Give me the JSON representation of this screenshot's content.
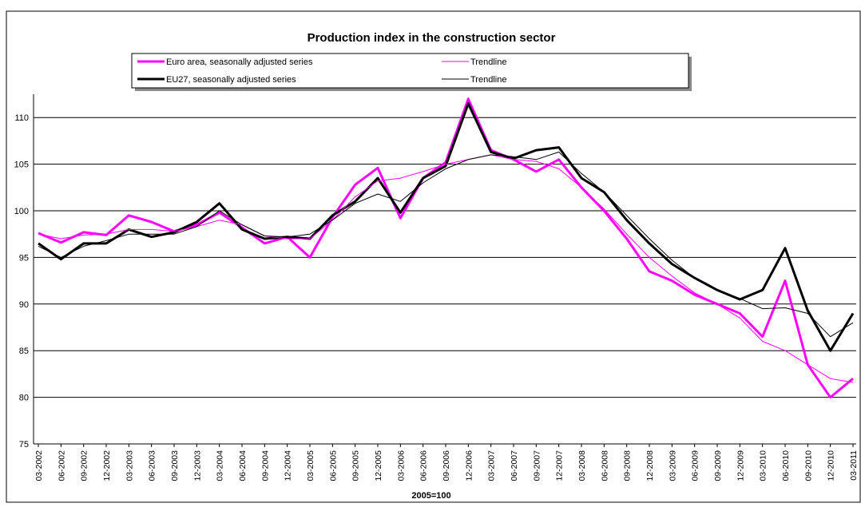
{
  "chart_data": {
    "type": "line",
    "title": "Production index in the construction sector",
    "xlabel": "2005=100",
    "categories": [
      "03-2002",
      "06-2002",
      "09-2002",
      "12-2002",
      "03-2003",
      "06-2003",
      "09-2003",
      "12-2003",
      "03-2004",
      "06-2004",
      "09-2004",
      "12-2004",
      "03-2005",
      "06-2005",
      "09-2005",
      "12-2005",
      "03-2006",
      "06-2006",
      "09-2006",
      "12-2006",
      "03-2007",
      "06-2007",
      "09-2007",
      "12-2007",
      "03-2008",
      "06-2008",
      "09-2008",
      "12-2008",
      "03-2009",
      "06-2009",
      "09-2009",
      "12-2009",
      "03-2010",
      "06-2010",
      "09-2010",
      "12-2010",
      "03-2011"
    ],
    "series": [
      {
        "name": "Euro area, seasonally adjusted series",
        "color": "#ff00ff",
        "width": 3,
        "values": [
          97.6,
          96.6,
          97.7,
          97.4,
          99.5,
          98.8,
          97.8,
          98.5,
          99.8,
          98.2,
          96.5,
          97.2,
          95.0,
          99.3,
          102.8,
          104.6,
          99.2,
          103.5,
          105.2,
          112.0,
          106.5,
          105.5,
          104.2,
          105.5,
          102.5,
          100.0,
          97.0,
          93.5,
          92.5,
          91.0,
          90.0,
          89.0,
          86.5,
          92.5,
          83.5,
          80.0,
          82.0
        ]
      },
      {
        "name": "Trendline",
        "color": "#ff00ff",
        "width": 1,
        "values": [
          97.5,
          97.0,
          97.4,
          97.5,
          98.0,
          98.0,
          97.8,
          98.3,
          99.0,
          98.5,
          97.3,
          97.0,
          97.0,
          99.0,
          101.5,
          103.2,
          103.5,
          104.2,
          105.0,
          105.5,
          106.0,
          105.5,
          105.3,
          104.5,
          102.5,
          100.2,
          97.5,
          95.0,
          93.0,
          91.2,
          90.0,
          88.5,
          86.0,
          85.0,
          83.5,
          82.0,
          81.6
        ]
      },
      {
        "name": "EU27, seasonally adjusted series",
        "color": "#000000",
        "width": 3,
        "values": [
          96.5,
          94.8,
          96.5,
          96.5,
          98.0,
          97.2,
          97.7,
          98.8,
          100.8,
          98.0,
          97.0,
          97.2,
          97.0,
          99.5,
          101.0,
          103.5,
          99.8,
          103.5,
          104.8,
          111.5,
          106.3,
          105.6,
          106.5,
          106.8,
          103.5,
          102.0,
          99.0,
          96.5,
          94.3,
          92.8,
          91.5,
          90.5,
          91.5,
          96.0,
          89.3,
          85.0,
          89.0
        ]
      },
      {
        "name": "Trendline",
        "color": "#000000",
        "width": 1,
        "values": [
          96.2,
          95.0,
          96.2,
          96.8,
          97.5,
          97.5,
          97.5,
          98.3,
          100.0,
          98.5,
          97.3,
          97.2,
          97.5,
          99.0,
          100.8,
          101.8,
          101.0,
          103.0,
          104.5,
          105.5,
          106.0,
          105.8,
          105.5,
          106.3,
          104.0,
          102.0,
          99.5,
          97.0,
          94.7,
          92.8,
          91.5,
          90.6,
          89.5,
          89.6,
          89.0,
          86.5,
          88.0
        ]
      }
    ],
    "ylim": [
      75,
      112.5
    ],
    "yticks": [
      75,
      80,
      85,
      90,
      95,
      100,
      105,
      110
    ],
    "grid": true
  }
}
